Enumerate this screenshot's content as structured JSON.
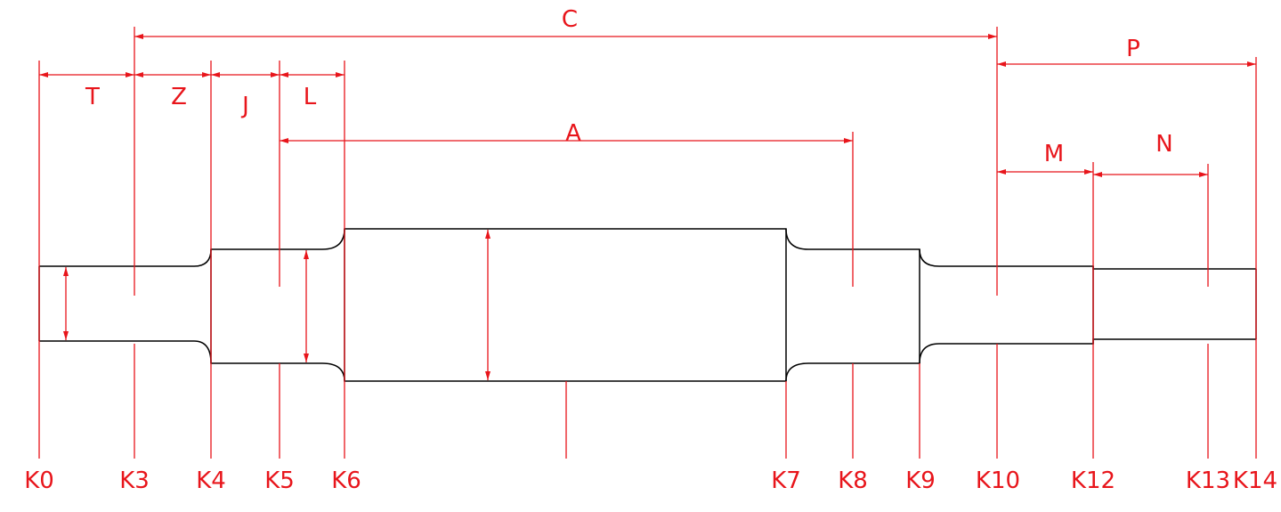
{
  "colors": {
    "dimension": "#e8151b",
    "outline": "#000000",
    "background": "#ffffff"
  },
  "dimensions": {
    "T": "T",
    "Z": "Z",
    "J": "J",
    "L": "L",
    "C": "C",
    "A": "A",
    "P": "P",
    "M": "M",
    "N": "N"
  },
  "stations": {
    "K0": "K0",
    "K3": "K3",
    "K4": "K4",
    "K5": "K5",
    "K6": "K6",
    "K7": "K7",
    "K8": "K8",
    "K9": "K9",
    "K10": "K10",
    "K12": "K12",
    "K13": "K13",
    "K14": "K14"
  }
}
